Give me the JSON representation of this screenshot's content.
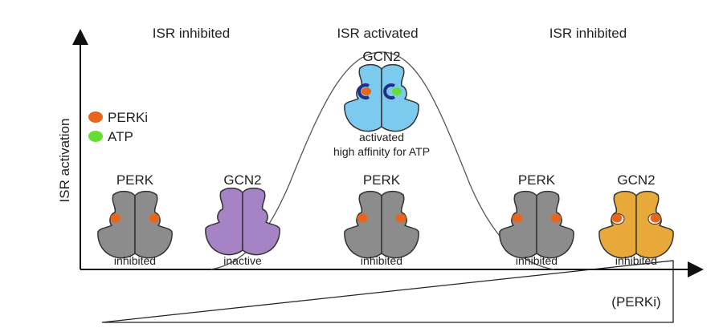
{
  "headers": [
    "ISR inhibited",
    "ISR activated",
    "ISR inhibited"
  ],
  "y_axis_label": "ISR activation",
  "legend": [
    {
      "label": "PERKi",
      "color": "#e8651c"
    },
    {
      "label": "ATP",
      "color": "#66dd33"
    }
  ],
  "gradient_label": "(PERKi)",
  "proteins": [
    {
      "name": "PERK",
      "state": "inhibited",
      "color": "#8c8c8c",
      "ligand": "PERKi"
    },
    {
      "name": "GCN2",
      "state": "inactive",
      "color": "#a583c4",
      "ligand": "none"
    },
    {
      "name": "GCN2",
      "state": "activated",
      "state2": "high affinity for ATP",
      "color": "#7ccbef",
      "ligand": "PERKi + ATP"
    },
    {
      "name": "PERK",
      "state": "inhibited",
      "color": "#8c8c8c",
      "ligand": "PERKi"
    },
    {
      "name": "PERK",
      "state": "inhibited",
      "color": "#8c8c8c",
      "ligand": "PERKi"
    },
    {
      "name": "GCN2",
      "state": "inhibited",
      "color": "#e7aa3a",
      "ligand": "PERKi"
    }
  ],
  "colors": {
    "pocket_ring": "#1f2f8a",
    "outline": "#333333"
  }
}
